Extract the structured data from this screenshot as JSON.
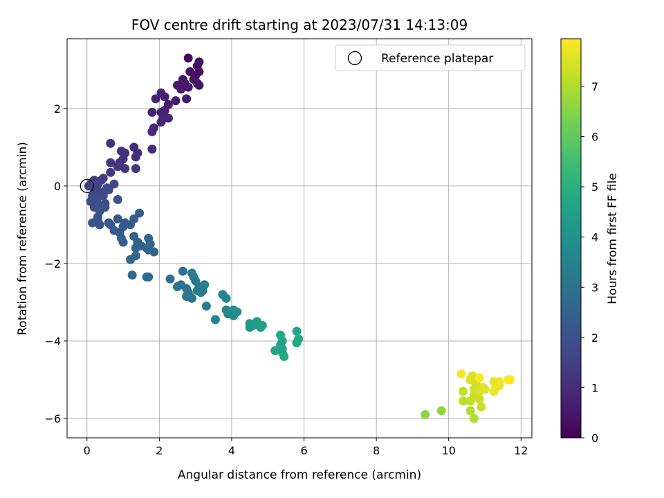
{
  "chart_data": {
    "type": "scatter",
    "title": "FOV centre drift starting at 2023/07/31 14:13:09",
    "xlabel": "Angular distance from reference (arcmin)",
    "ylabel": "Rotation from reference (arcmin)",
    "xlim": [
      -0.55,
      12.3
    ],
    "ylim": [
      -6.5,
      3.8
    ],
    "x_ticks": [
      0,
      2,
      4,
      6,
      8,
      10,
      12
    ],
    "y_ticks": [
      -6,
      -4,
      -2,
      0,
      2
    ],
    "grid": true,
    "legend": {
      "placement": "top-right",
      "label": "Reference platepar"
    },
    "colorbar": {
      "label": "Hours from first FF file",
      "range": [
        0,
        7.95
      ],
      "ticks": [
        0,
        1,
        2,
        3,
        4,
        5,
        6,
        7
      ],
      "colormap": "viridis"
    },
    "reference_point": {
      "x": 0,
      "y": 0
    },
    "points": [
      {
        "x": 2.8,
        "y": 3.3,
        "t": 0.2
      },
      {
        "x": 3.1,
        "y": 3.2,
        "t": 0.25
      },
      {
        "x": 3.05,
        "y": 3.1,
        "t": 0.3
      },
      {
        "x": 2.85,
        "y": 2.95,
        "t": 0.3
      },
      {
        "x": 3.0,
        "y": 2.85,
        "t": 0.35
      },
      {
        "x": 3.1,
        "y": 2.95,
        "t": 0.35
      },
      {
        "x": 2.95,
        "y": 2.75,
        "t": 0.4
      },
      {
        "x": 3.05,
        "y": 2.65,
        "t": 0.4
      },
      {
        "x": 3.1,
        "y": 2.6,
        "t": 0.45
      },
      {
        "x": 2.65,
        "y": 2.75,
        "t": 0.45
      },
      {
        "x": 2.7,
        "y": 2.65,
        "t": 0.5
      },
      {
        "x": 2.8,
        "y": 2.55,
        "t": 0.5
      },
      {
        "x": 2.5,
        "y": 2.6,
        "t": 0.55
      },
      {
        "x": 2.6,
        "y": 2.5,
        "t": 0.55
      },
      {
        "x": 2.75,
        "y": 2.25,
        "t": 0.6
      },
      {
        "x": 2.45,
        "y": 2.2,
        "t": 0.6
      },
      {
        "x": 2.25,
        "y": 2.1,
        "t": 0.65
      },
      {
        "x": 2.15,
        "y": 2.3,
        "t": 0.7
      },
      {
        "x": 2.05,
        "y": 2.4,
        "t": 0.7
      },
      {
        "x": 2.15,
        "y": 1.95,
        "t": 0.75
      },
      {
        "x": 2.05,
        "y": 1.9,
        "t": 0.75
      },
      {
        "x": 1.9,
        "y": 2.25,
        "t": 0.8
      },
      {
        "x": 1.8,
        "y": 1.9,
        "t": 0.8
      },
      {
        "x": 2.25,
        "y": 1.75,
        "t": 0.85
      },
      {
        "x": 2.1,
        "y": 1.75,
        "t": 0.85
      },
      {
        "x": 2.05,
        "y": 1.65,
        "t": 0.9
      },
      {
        "x": 1.85,
        "y": 1.5,
        "t": 0.9
      },
      {
        "x": 1.8,
        "y": 1.4,
        "t": 0.95
      },
      {
        "x": 1.8,
        "y": 0.95,
        "t": 1.0
      },
      {
        "x": 1.4,
        "y": 0.85,
        "t": 1.05
      },
      {
        "x": 1.3,
        "y": 1.0,
        "t": 1.05
      },
      {
        "x": 1.35,
        "y": 0.75,
        "t": 1.1
      },
      {
        "x": 1.05,
        "y": 0.85,
        "t": 1.1
      },
      {
        "x": 0.95,
        "y": 0.9,
        "t": 1.15
      },
      {
        "x": 1.0,
        "y": 0.7,
        "t": 1.15
      },
      {
        "x": 0.9,
        "y": 0.6,
        "t": 1.2
      },
      {
        "x": 0.65,
        "y": 1.1,
        "t": 1.2
      },
      {
        "x": 0.65,
        "y": 0.6,
        "t": 1.25
      },
      {
        "x": 0.85,
        "y": 0.5,
        "t": 1.25
      },
      {
        "x": 1.05,
        "y": 0.45,
        "t": 1.3
      },
      {
        "x": 1.35,
        "y": 0.45,
        "t": 1.3
      },
      {
        "x": 0.65,
        "y": 0.35,
        "t": 1.35
      },
      {
        "x": 0.45,
        "y": 0.2,
        "t": 1.4
      },
      {
        "x": 0.4,
        "y": 0.15,
        "t": 1.4
      },
      {
        "x": 0.2,
        "y": 0.15,
        "t": 1.45
      },
      {
        "x": 0.15,
        "y": 0.1,
        "t": 1.5
      },
      {
        "x": 0.1,
        "y": 0.05,
        "t": 1.5
      },
      {
        "x": 0.05,
        "y": 0.0,
        "t": 1.55
      },
      {
        "x": 0.15,
        "y": 0.0,
        "t": 1.55
      },
      {
        "x": 0.25,
        "y": -0.05,
        "t": 1.6
      },
      {
        "x": 0.2,
        "y": -0.1,
        "t": 1.6
      },
      {
        "x": 0.3,
        "y": 0.05,
        "t": 1.65
      },
      {
        "x": 0.35,
        "y": -0.15,
        "t": 1.65
      },
      {
        "x": 0.55,
        "y": -0.05,
        "t": 1.7
      },
      {
        "x": 0.6,
        "y": -0.1,
        "t": 1.7
      },
      {
        "x": 0.75,
        "y": 0.05,
        "t": 1.75
      },
      {
        "x": 0.45,
        "y": -0.25,
        "t": 1.75
      },
      {
        "x": 0.3,
        "y": -0.3,
        "t": 1.8
      },
      {
        "x": 0.15,
        "y": -0.25,
        "t": 1.8
      },
      {
        "x": 0.1,
        "y": -0.4,
        "t": 1.85
      },
      {
        "x": 0.25,
        "y": -0.45,
        "t": 1.85
      },
      {
        "x": 0.35,
        "y": -0.5,
        "t": 1.9
      },
      {
        "x": 0.5,
        "y": -0.45,
        "t": 1.9
      },
      {
        "x": 0.5,
        "y": -0.55,
        "t": 1.95
      },
      {
        "x": 0.2,
        "y": -0.55,
        "t": 1.95
      },
      {
        "x": 0.35,
        "y": -0.65,
        "t": 2.0
      },
      {
        "x": 0.3,
        "y": -0.8,
        "t": 2.0
      },
      {
        "x": 0.85,
        "y": -0.35,
        "t": 2.0
      },
      {
        "x": 0.15,
        "y": -0.95,
        "t": 2.05
      },
      {
        "x": 0.3,
        "y": -0.9,
        "t": 2.05
      },
      {
        "x": 0.35,
        "y": -1.0,
        "t": 2.1
      },
      {
        "x": 0.6,
        "y": -0.95,
        "t": 2.1
      },
      {
        "x": 0.65,
        "y": -1.0,
        "t": 2.15
      },
      {
        "x": 0.85,
        "y": -0.85,
        "t": 2.15
      },
      {
        "x": 0.75,
        "y": -1.15,
        "t": 2.2
      },
      {
        "x": 0.9,
        "y": -1.2,
        "t": 2.2
      },
      {
        "x": 1.0,
        "y": -1.05,
        "t": 2.25
      },
      {
        "x": 1.05,
        "y": -0.95,
        "t": 2.25
      },
      {
        "x": 1.2,
        "y": -1.0,
        "t": 2.3
      },
      {
        "x": 1.3,
        "y": -0.85,
        "t": 2.3
      },
      {
        "x": 1.45,
        "y": -0.7,
        "t": 2.35
      },
      {
        "x": 0.95,
        "y": -1.35,
        "t": 2.35
      },
      {
        "x": 1.0,
        "y": -1.45,
        "t": 2.4
      },
      {
        "x": 1.3,
        "y": -1.3,
        "t": 2.4
      },
      {
        "x": 1.4,
        "y": -1.45,
        "t": 2.45
      },
      {
        "x": 1.35,
        "y": -1.6,
        "t": 2.45
      },
      {
        "x": 1.5,
        "y": -1.55,
        "t": 2.5
      },
      {
        "x": 1.65,
        "y": -1.6,
        "t": 2.5
      },
      {
        "x": 1.7,
        "y": -1.35,
        "t": 2.55
      },
      {
        "x": 1.75,
        "y": -1.5,
        "t": 2.55
      },
      {
        "x": 1.85,
        "y": -1.7,
        "t": 2.6
      },
      {
        "x": 1.7,
        "y": -1.65,
        "t": 2.6
      },
      {
        "x": 1.2,
        "y": -1.9,
        "t": 2.65
      },
      {
        "x": 1.35,
        "y": -1.8,
        "t": 2.65
      },
      {
        "x": 1.25,
        "y": -2.3,
        "t": 2.7
      },
      {
        "x": 1.65,
        "y": -2.35,
        "t": 2.7
      },
      {
        "x": 1.7,
        "y": -2.35,
        "t": 2.75
      },
      {
        "x": 2.65,
        "y": -2.2,
        "t": 2.9
      },
      {
        "x": 2.3,
        "y": -2.4,
        "t": 2.95
      },
      {
        "x": 2.5,
        "y": -2.6,
        "t": 3.0
      },
      {
        "x": 2.6,
        "y": -2.55,
        "t": 3.0
      },
      {
        "x": 2.75,
        "y": -2.65,
        "t": 3.05
      },
      {
        "x": 2.8,
        "y": -2.75,
        "t": 3.05
      },
      {
        "x": 2.85,
        "y": -2.85,
        "t": 3.1
      },
      {
        "x": 2.75,
        "y": -2.85,
        "t": 3.1
      },
      {
        "x": 2.9,
        "y": -2.9,
        "t": 3.15
      },
      {
        "x": 2.9,
        "y": -2.25,
        "t": 3.15
      },
      {
        "x": 2.95,
        "y": -2.35,
        "t": 3.2
      },
      {
        "x": 3.0,
        "y": -2.45,
        "t": 3.2
      },
      {
        "x": 3.1,
        "y": -2.6,
        "t": 3.25
      },
      {
        "x": 3.15,
        "y": -2.75,
        "t": 3.25
      },
      {
        "x": 3.2,
        "y": -2.7,
        "t": 3.3
      },
      {
        "x": 3.05,
        "y": -2.7,
        "t": 3.3
      },
      {
        "x": 3.25,
        "y": -2.55,
        "t": 3.35
      },
      {
        "x": 3.3,
        "y": -3.1,
        "t": 3.4
      },
      {
        "x": 3.55,
        "y": -3.45,
        "t": 3.5
      },
      {
        "x": 3.75,
        "y": -2.8,
        "t": 3.55
      },
      {
        "x": 3.85,
        "y": -2.9,
        "t": 3.6
      },
      {
        "x": 3.85,
        "y": -3.2,
        "t": 3.65
      },
      {
        "x": 3.9,
        "y": -3.3,
        "t": 3.7
      },
      {
        "x": 3.95,
        "y": -3.25,
        "t": 3.75
      },
      {
        "x": 4.05,
        "y": -3.35,
        "t": 3.8
      },
      {
        "x": 4.05,
        "y": -3.2,
        "t": 3.85
      },
      {
        "x": 4.15,
        "y": -3.25,
        "t": 3.9
      },
      {
        "x": 4.5,
        "y": -3.55,
        "t": 4.2
      },
      {
        "x": 4.5,
        "y": -3.65,
        "t": 4.25
      },
      {
        "x": 4.6,
        "y": -3.6,
        "t": 4.3
      },
      {
        "x": 4.7,
        "y": -3.5,
        "t": 4.35
      },
      {
        "x": 4.75,
        "y": -3.6,
        "t": 4.4
      },
      {
        "x": 4.85,
        "y": -3.6,
        "t": 4.45
      },
      {
        "x": 4.8,
        "y": -3.65,
        "t": 4.45
      },
      {
        "x": 5.2,
        "y": -4.25,
        "t": 4.55
      },
      {
        "x": 5.35,
        "y": -4.1,
        "t": 4.6
      },
      {
        "x": 5.4,
        "y": -4.0,
        "t": 4.6
      },
      {
        "x": 5.4,
        "y": -4.2,
        "t": 4.65
      },
      {
        "x": 5.4,
        "y": -4.3,
        "t": 4.65
      },
      {
        "x": 5.45,
        "y": -4.4,
        "t": 4.7
      },
      {
        "x": 5.35,
        "y": -3.85,
        "t": 4.7
      },
      {
        "x": 5.8,
        "y": -3.75,
        "t": 4.75
      },
      {
        "x": 5.8,
        "y": -4.05,
        "t": 4.75
      },
      {
        "x": 5.85,
        "y": -3.95,
        "t": 4.8
      },
      {
        "x": 9.35,
        "y": -5.9,
        "t": 6.6
      },
      {
        "x": 9.8,
        "y": -5.8,
        "t": 6.65
      },
      {
        "x": 10.7,
        "y": -6.0,
        "t": 7.0
      },
      {
        "x": 10.6,
        "y": -5.8,
        "t": 7.05
      },
      {
        "x": 10.4,
        "y": -5.55,
        "t": 7.1
      },
      {
        "x": 10.6,
        "y": -5.55,
        "t": 7.15
      },
      {
        "x": 10.4,
        "y": -5.3,
        "t": 7.2
      },
      {
        "x": 10.7,
        "y": -5.4,
        "t": 7.25
      },
      {
        "x": 10.85,
        "y": -5.5,
        "t": 7.3
      },
      {
        "x": 10.9,
        "y": -5.7,
        "t": 7.3
      },
      {
        "x": 10.7,
        "y": -5.25,
        "t": 7.35
      },
      {
        "x": 10.75,
        "y": -5.1,
        "t": 7.4
      },
      {
        "x": 10.6,
        "y": -5.0,
        "t": 7.45
      },
      {
        "x": 10.65,
        "y": -4.9,
        "t": 7.5
      },
      {
        "x": 10.85,
        "y": -5.3,
        "t": 7.5
      },
      {
        "x": 10.95,
        "y": -5.2,
        "t": 7.55
      },
      {
        "x": 11.0,
        "y": -5.25,
        "t": 7.6
      },
      {
        "x": 11.25,
        "y": -5.05,
        "t": 7.6
      },
      {
        "x": 11.25,
        "y": -5.3,
        "t": 7.65
      },
      {
        "x": 11.3,
        "y": -5.2,
        "t": 7.7
      },
      {
        "x": 11.4,
        "y": -5.15,
        "t": 7.7
      },
      {
        "x": 11.4,
        "y": -5.05,
        "t": 7.75
      },
      {
        "x": 11.65,
        "y": -5.0,
        "t": 7.85
      },
      {
        "x": 11.7,
        "y": -5.0,
        "t": 7.9
      },
      {
        "x": 10.35,
        "y": -4.85,
        "t": 7.9
      },
      {
        "x": 10.85,
        "y": -4.95,
        "t": 7.95
      }
    ]
  }
}
